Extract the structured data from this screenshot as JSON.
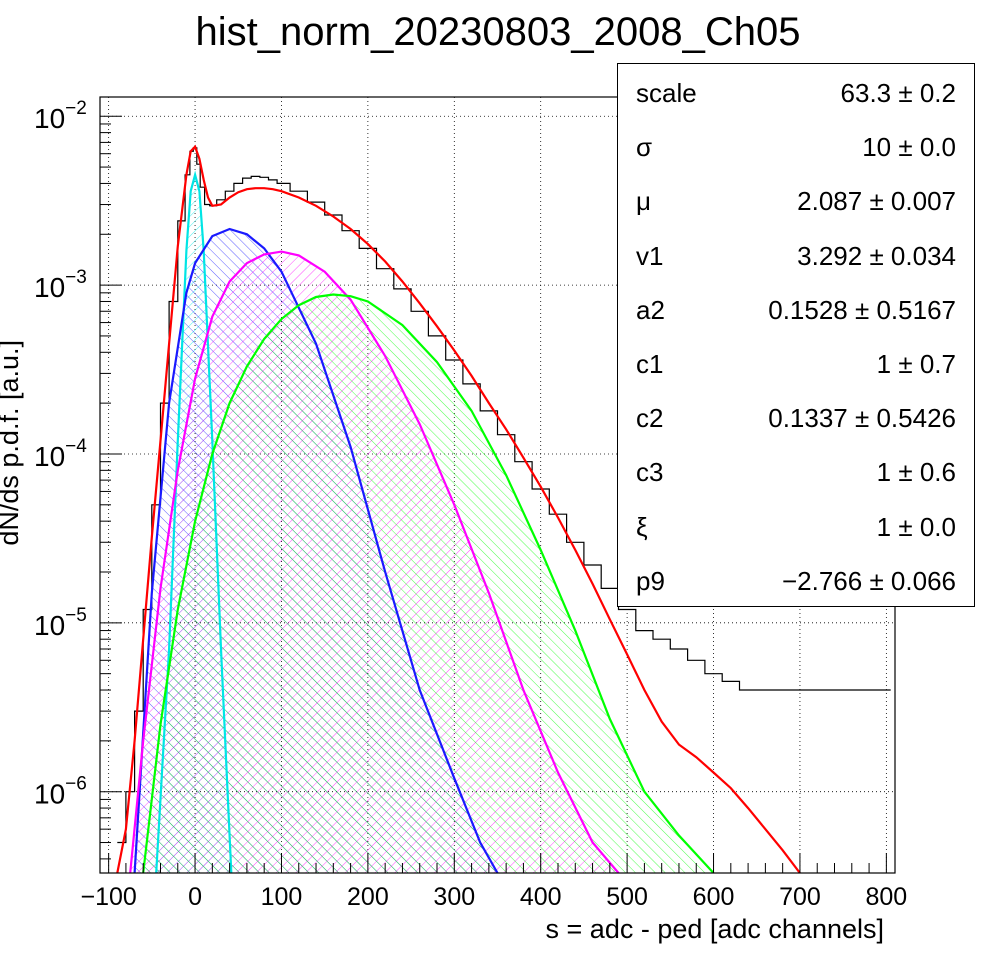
{
  "chart_data": {
    "type": "line",
    "title": "hist_norm_20230803_2008_Ch05",
    "xlabel": "s = adc - ped [adc channels]",
    "ylabel": "dN/ds p.d.f. [a.u.]",
    "xlim": [
      -110,
      810
    ],
    "ylim": [
      3.3e-07,
      0.013
    ],
    "yscale": "log",
    "grid": true,
    "x_ticks": [
      -100,
      0,
      100,
      200,
      300,
      400,
      500,
      600,
      700,
      800
    ],
    "x_tick_labels": [
      "−100",
      "0",
      "100",
      "200",
      "300",
      "400",
      "500",
      "600",
      "700",
      "800"
    ],
    "y_ticks": [
      1e-06,
      1e-05,
      0.0001,
      0.001,
      0.01
    ],
    "y_tick_labels": [
      {
        "base": "10",
        "exp": "−6"
      },
      {
        "base": "10",
        "exp": "−5"
      },
      {
        "base": "10",
        "exp": "−4"
      },
      {
        "base": "10",
        "exp": "−3"
      },
      {
        "base": "10",
        "exp": "−2"
      }
    ],
    "histogram": {
      "name": "data",
      "color": "#000000",
      "x": [
        -85,
        -75,
        -65,
        -55,
        -45,
        -35,
        -25,
        -15,
        -8,
        -4,
        0,
        4,
        8,
        14,
        20,
        30,
        40,
        50,
        60,
        70,
        80,
        90,
        100,
        120,
        140,
        160,
        180,
        200,
        220,
        240,
        260,
        280,
        300,
        320,
        340,
        360,
        380,
        400,
        420,
        440,
        460,
        480,
        500,
        520,
        540,
        560,
        580,
        600,
        620,
        640,
        660,
        680,
        700,
        720,
        740,
        760,
        780,
        800
      ],
      "y": [
        5e-07,
        1e-06,
        3e-06,
        1.2e-05,
        5e-05,
        0.0002,
        0.0008,
        0.0024,
        0.0045,
        0.0062,
        0.0065,
        0.0052,
        0.0038,
        0.003,
        0.00295,
        0.0032,
        0.0036,
        0.004,
        0.0043,
        0.0044,
        0.00435,
        0.0042,
        0.004,
        0.0036,
        0.0031,
        0.0026,
        0.0021,
        0.00165,
        0.00125,
        0.00095,
        0.0007,
        0.0005,
        0.00036,
        0.00026,
        0.00018,
        0.00013,
        9e-05,
        6.2e-05,
        4.4e-05,
        3e-05,
        2.2e-05,
        1.6e-05,
        1.2e-05,
        9e-06,
        8e-06,
        7e-06,
        6e-06,
        5e-06,
        4.5e-06,
        4e-06,
        4e-06,
        4e-06,
        4e-06,
        4e-06,
        4e-06,
        4e-06,
        4e-06,
        4e-06
      ]
    },
    "series": [
      {
        "color": "#ff0000",
        "hatch": false,
        "x": [
          -90,
          -80,
          -70,
          -60,
          -50,
          -40,
          -30,
          -20,
          -10,
          -5,
          0,
          5,
          10,
          15,
          20,
          30,
          40,
          50,
          60,
          70,
          80,
          90,
          100,
          120,
          140,
          160,
          180,
          200,
          220,
          240,
          260,
          280,
          300,
          320,
          340,
          360,
          380,
          400,
          420,
          440,
          460,
          480,
          500,
          520,
          540,
          560,
          580,
          600,
          620,
          640,
          660,
          680,
          700
        ],
        "y": [
          3.3e-07,
          6e-07,
          2e-06,
          8e-06,
          3.2e-05,
          0.00012,
          0.00045,
          0.0017,
          0.0045,
          0.0062,
          0.0066,
          0.0056,
          0.0042,
          0.0033,
          0.00295,
          0.003,
          0.0033,
          0.00355,
          0.0037,
          0.00375,
          0.00375,
          0.0037,
          0.0036,
          0.0033,
          0.00295,
          0.00255,
          0.00215,
          0.00175,
          0.00138,
          0.00105,
          0.00078,
          0.00057,
          0.00041,
          0.00029,
          0.0002,
          0.00014,
          9.5e-05,
          6.4e-05,
          4.2e-05,
          2.7e-05,
          1.7e-05,
          1.05e-05,
          6.5e-06,
          4e-06,
          2.6e-06,
          1.9e-06,
          1.6e-06,
          1.3e-06,
          1.05e-06,
          8e-07,
          6e-07,
          4.5e-07,
          3.3e-07
        ]
      },
      {
        "color": "#00e5e5",
        "hatch": true,
        "x": [
          -45,
          -30,
          -20,
          -10,
          -5,
          0,
          5,
          10,
          20,
          30,
          42
        ],
        "y": [
          3.3e-07,
          7e-06,
          0.00012,
          0.0016,
          0.0036,
          0.0045,
          0.0036,
          0.0016,
          0.00012,
          7e-06,
          3.3e-07
        ]
      },
      {
        "color": "#1a1aff",
        "hatch": true,
        "x": [
          -70,
          -50,
          -30,
          -10,
          0,
          20,
          40,
          60,
          80,
          100,
          140,
          180,
          220,
          260,
          300,
          330,
          350
        ],
        "y": [
          3.3e-07,
          1.5e-05,
          0.0002,
          0.0009,
          0.00135,
          0.00195,
          0.00215,
          0.002,
          0.00165,
          0.0012,
          0.00045,
          0.00011,
          2e-05,
          4e-06,
          1.2e-06,
          5e-07,
          3.3e-07
        ]
      },
      {
        "color": "#ff00ff",
        "hatch": true,
        "x": [
          -75,
          -60,
          -40,
          -20,
          0,
          20,
          40,
          60,
          80,
          100,
          120,
          150,
          180,
          220,
          260,
          300,
          340,
          380,
          420,
          460,
          490
        ],
        "y": [
          3.3e-07,
          2e-06,
          1.6e-05,
          8e-05,
          0.00028,
          0.00065,
          0.00105,
          0.00135,
          0.00152,
          0.00158,
          0.0015,
          0.0012,
          0.00082,
          0.00038,
          0.00015,
          5e-05,
          1.5e-05,
          4e-06,
          1.3e-06,
          5e-07,
          3.3e-07
        ]
      },
      {
        "color": "#00ff00",
        "hatch": true,
        "x": [
          -60,
          -40,
          -20,
          0,
          20,
          40,
          60,
          80,
          100,
          120,
          140,
          160,
          180,
          200,
          240,
          280,
          320,
          360,
          400,
          440,
          480,
          520,
          560,
          600
        ],
        "y": [
          3.3e-07,
          2.5e-06,
          1.2e-05,
          4e-05,
          0.0001,
          0.0002,
          0.00033,
          0.00048,
          0.00063,
          0.00076,
          0.00085,
          0.00088,
          0.00086,
          0.0008,
          0.00058,
          0.00035,
          0.00018,
          7.5e-05,
          2.7e-05,
          9e-06,
          2.7e-06,
          1e-06,
          5.5e-07,
          3.3e-07
        ]
      }
    ]
  },
  "stats_box": {
    "rows": [
      {
        "name": "scale",
        "value": "63.3 ± 0.2"
      },
      {
        "name": "σ",
        "value": "10 ± 0.0"
      },
      {
        "name": "μ",
        "value": "2.087 ± 0.007"
      },
      {
        "name": "v1",
        "value": "3.292 ± 0.034"
      },
      {
        "name": "a2",
        "value": "0.1528 ± 0.5167"
      },
      {
        "name": "c1",
        "value": "1 ± 0.7"
      },
      {
        "name": "c2",
        "value": "0.1337 ± 0.5426"
      },
      {
        "name": "c3",
        "value": "1 ± 0.6"
      },
      {
        "name": "ξ",
        "value": "1 ± 0.0"
      },
      {
        "name": "p9",
        "value": "−2.766 ± 0.066"
      }
    ]
  }
}
